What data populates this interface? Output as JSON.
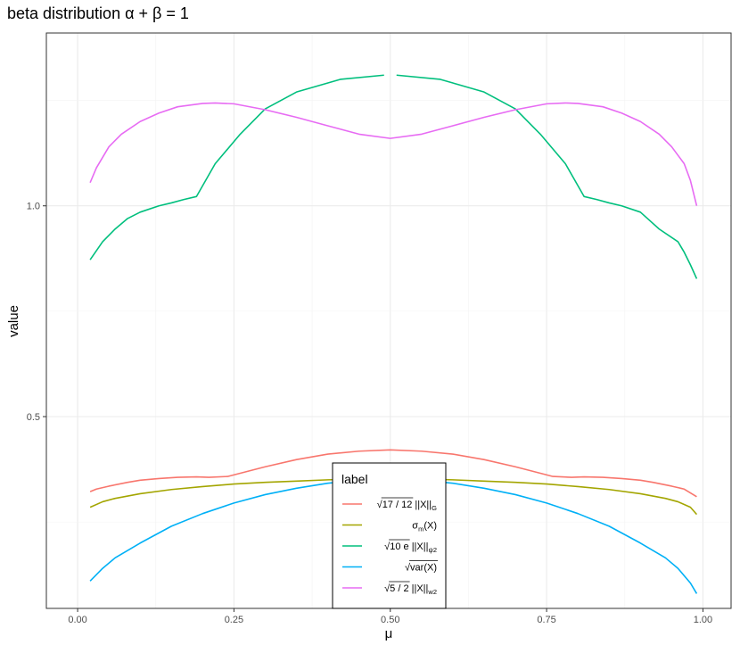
{
  "chart_data": {
    "type": "line",
    "title": "beta distribution α + β = 1",
    "xlabel": "μ",
    "ylabel": "value",
    "xlim": [
      -0.05,
      1.045
    ],
    "ylim": [
      0.045,
      1.41
    ],
    "x_ticks": [
      0.0,
      0.25,
      0.5,
      0.75,
      1.0
    ],
    "x_tick_labels": [
      "0.00",
      "0.25",
      "0.50",
      "0.75",
      "1.00"
    ],
    "y_ticks": [
      0.5,
      1.0
    ],
    "y_tick_labels": [
      "0.5",
      "1.0"
    ],
    "grid": true,
    "legend": {
      "title": "label",
      "placement": "bottom-center",
      "entries": [
        {
          "series": 0,
          "parts": [
            {
              "t": "√",
              "kind": "sqrt"
            },
            {
              "t": "17 / 12",
              "kind": "over"
            },
            {
              "t": " ||X||",
              "kind": "plain"
            },
            {
              "t": "G",
              "kind": "sub"
            }
          ]
        },
        {
          "series": 1,
          "parts": [
            {
              "t": "σ",
              "kind": "plain"
            },
            {
              "t": "m",
              "kind": "sub"
            },
            {
              "t": "(X)",
              "kind": "plain"
            }
          ]
        },
        {
          "series": 2,
          "parts": [
            {
              "t": "√",
              "kind": "sqrt"
            },
            {
              "t": "10 e",
              "kind": "over"
            },
            {
              "t": " ||X||",
              "kind": "plain"
            },
            {
              "t": "ψ2",
              "kind": "sub"
            }
          ]
        },
        {
          "series": 3,
          "parts": [
            {
              "t": "√",
              "kind": "sqrt"
            },
            {
              "t": "var(X)",
              "kind": "over"
            }
          ]
        },
        {
          "series": 4,
          "parts": [
            {
              "t": "√",
              "kind": "sqrt"
            },
            {
              "t": "5 / 2",
              "kind": "over"
            },
            {
              "t": " ||X||",
              "kind": "plain"
            },
            {
              "t": "w2",
              "kind": "sub"
            }
          ]
        }
      ]
    },
    "series": [
      {
        "color": "#F8766D",
        "x": [
          0.02,
          0.03,
          0.05,
          0.08,
          0.1,
          0.13,
          0.16,
          0.19,
          0.21,
          0.24,
          0.3,
          0.35,
          0.4,
          0.45,
          0.5,
          0.55,
          0.6,
          0.65,
          0.7,
          0.76,
          0.79,
          0.81,
          0.84,
          0.87,
          0.9,
          0.92,
          0.95,
          0.97,
          0.99
        ],
        "y": [
          0.322,
          0.328,
          0.335,
          0.344,
          0.349,
          0.353,
          0.356,
          0.357,
          0.356,
          0.358,
          0.381,
          0.398,
          0.411,
          0.418,
          0.421,
          0.418,
          0.411,
          0.398,
          0.381,
          0.358,
          0.356,
          0.357,
          0.356,
          0.353,
          0.349,
          0.344,
          0.335,
          0.328,
          0.31
        ]
      },
      {
        "color": "#A3A500",
        "x": [
          0.02,
          0.04,
          0.06,
          0.1,
          0.15,
          0.2,
          0.25,
          0.3,
          0.35,
          0.4,
          0.45,
          0.5,
          0.55,
          0.6,
          0.65,
          0.7,
          0.75,
          0.8,
          0.85,
          0.9,
          0.94,
          0.96,
          0.98,
          0.99
        ],
        "y": [
          0.285,
          0.298,
          0.306,
          0.317,
          0.327,
          0.334,
          0.34,
          0.344,
          0.347,
          0.35,
          0.352,
          0.352,
          0.352,
          0.35,
          0.347,
          0.344,
          0.34,
          0.334,
          0.327,
          0.317,
          0.306,
          0.298,
          0.285,
          0.268
        ]
      },
      {
        "color": "#00BF7D",
        "gap_after_index": 14,
        "x": [
          0.02,
          0.04,
          0.06,
          0.08,
          0.1,
          0.13,
          0.15,
          0.17,
          0.19,
          0.22,
          0.26,
          0.3,
          0.35,
          0.42,
          0.49,
          0.51,
          0.58,
          0.65,
          0.7,
          0.74,
          0.78,
          0.81,
          0.83,
          0.85,
          0.87,
          0.9,
          0.93,
          0.96,
          0.97,
          0.98,
          0.99
        ],
        "y": [
          0.872,
          0.915,
          0.945,
          0.97,
          0.985,
          1.0,
          1.007,
          1.015,
          1.022,
          1.1,
          1.17,
          1.23,
          1.27,
          1.3,
          1.31,
          1.31,
          1.3,
          1.27,
          1.23,
          1.17,
          1.1,
          1.022,
          1.015,
          1.007,
          1.0,
          0.985,
          0.945,
          0.915,
          0.89,
          0.86,
          0.827
        ]
      },
      {
        "color": "#00B0F6",
        "x": [
          0.02,
          0.04,
          0.06,
          0.1,
          0.15,
          0.2,
          0.25,
          0.3,
          0.35,
          0.4,
          0.45,
          0.5,
          0.55,
          0.6,
          0.65,
          0.7,
          0.75,
          0.8,
          0.85,
          0.9,
          0.94,
          0.96,
          0.98,
          0.99
        ],
        "y": [
          0.11,
          0.14,
          0.165,
          0.2,
          0.24,
          0.27,
          0.295,
          0.315,
          0.33,
          0.342,
          0.349,
          0.352,
          0.349,
          0.342,
          0.33,
          0.315,
          0.295,
          0.27,
          0.24,
          0.2,
          0.165,
          0.14,
          0.105,
          0.08
        ]
      },
      {
        "color": "#E76BF3",
        "x": [
          0.02,
          0.03,
          0.05,
          0.07,
          0.1,
          0.13,
          0.16,
          0.2,
          0.22,
          0.25,
          0.3,
          0.35,
          0.4,
          0.45,
          0.5,
          0.55,
          0.6,
          0.65,
          0.7,
          0.75,
          0.78,
          0.8,
          0.84,
          0.87,
          0.9,
          0.93,
          0.95,
          0.97,
          0.98,
          0.99
        ],
        "y": [
          1.055,
          1.09,
          1.14,
          1.17,
          1.2,
          1.22,
          1.235,
          1.243,
          1.244,
          1.242,
          1.228,
          1.21,
          1.19,
          1.17,
          1.16,
          1.17,
          1.19,
          1.21,
          1.228,
          1.242,
          1.244,
          1.243,
          1.235,
          1.22,
          1.2,
          1.17,
          1.14,
          1.1,
          1.06,
          1.0
        ]
      }
    ]
  }
}
